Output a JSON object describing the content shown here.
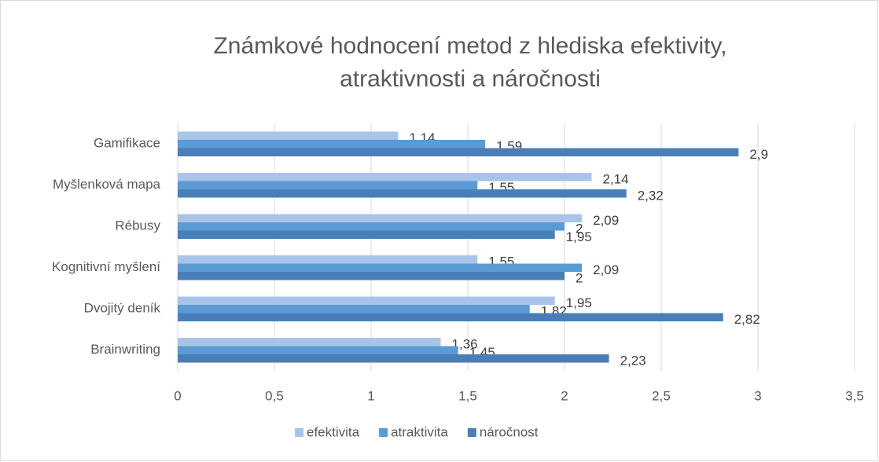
{
  "chart_data": {
    "type": "hbar",
    "title": [
      "Známkové hodnocení metod z hlediska efektivity,",
      "atraktivnosti a náročnosti"
    ],
    "categories": [
      "Gamifikace",
      "Myšlenková mapa",
      "Rébusy",
      "Kognitivní myšlení",
      "Dvojitý deník",
      "Brainwriting"
    ],
    "series": [
      {
        "name": "efektivita",
        "color": "#a9c4e9",
        "values": [
          1.14,
          2.14,
          2.09,
          1.55,
          1.95,
          1.36
        ],
        "value_labels": [
          "1,14",
          "2,14",
          "2,09",
          "1,55",
          "1,95",
          "1,36"
        ]
      },
      {
        "name": "atraktivita",
        "color": "#5b9bd5",
        "values": [
          1.59,
          1.55,
          2,
          2.09,
          1.82,
          1.45
        ],
        "value_labels": [
          "1,59",
          "1,55",
          "2",
          "2,09",
          "1,82",
          "1,45"
        ]
      },
      {
        "name": "náročnost",
        "color": "#4a7eb8",
        "values": [
          2.9,
          2.32,
          1.95,
          2,
          2.82,
          2.23
        ],
        "value_labels": [
          "2,9",
          "2,32",
          "1,95",
          "2",
          "2,82",
          "2,23"
        ]
      }
    ],
    "xlim": [
      0,
      3.5
    ],
    "xticks": [
      0,
      {
        "value": 0.5,
        "label": "0,5"
      },
      1,
      {
        "value": 1.5,
        "label": "1,5"
      },
      2,
      {
        "value": 2.5,
        "label": "2,5"
      },
      3,
      {
        "value": 3.5,
        "label": "3,5"
      }
    ],
    "grid": true,
    "legend": "bottom"
  }
}
